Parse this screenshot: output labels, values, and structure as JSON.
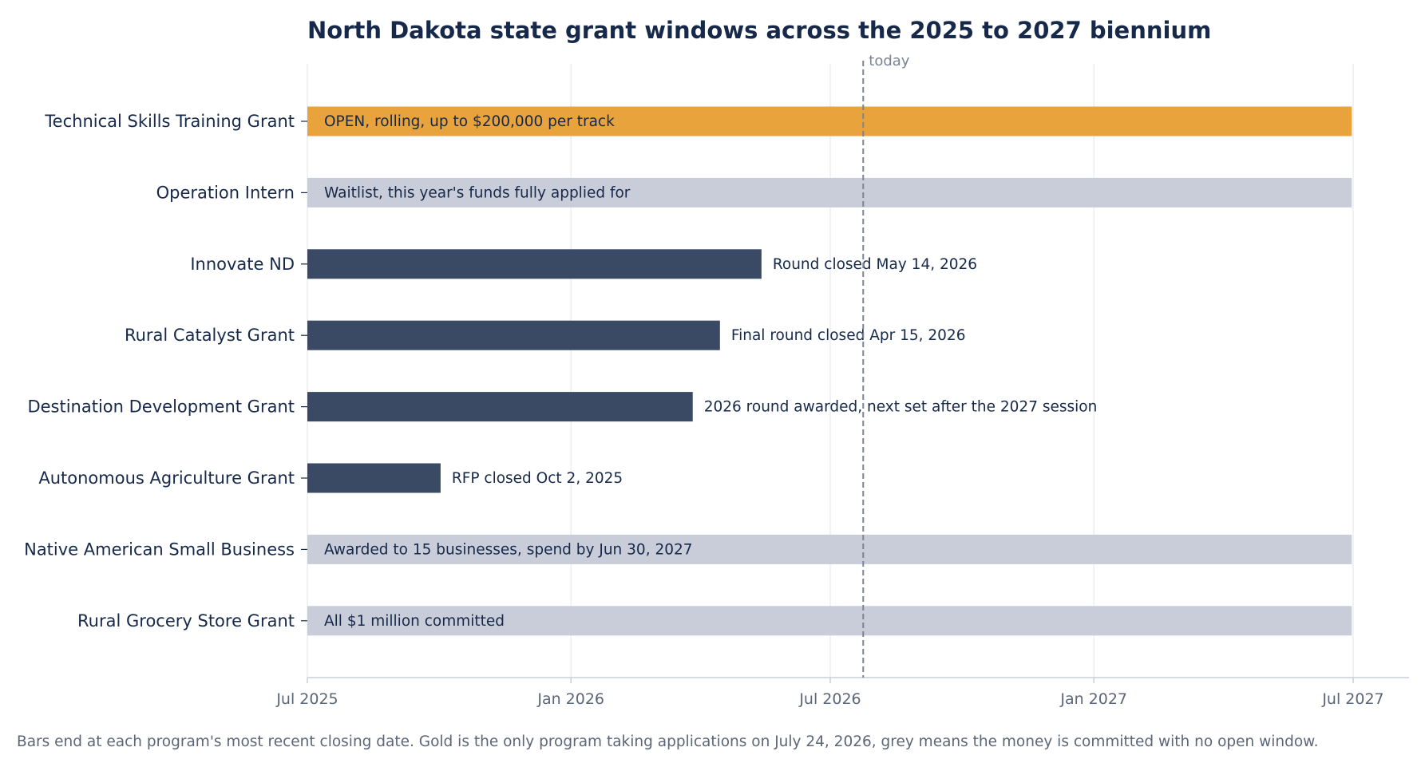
{
  "chart_data": {
    "type": "gantt-bar",
    "title": "North Dakota state grant windows across the 2025 to 2027 biennium",
    "xlim": [
      "2025-07-01",
      "2027-07-01"
    ],
    "x_ticks": [
      {
        "date": "2025-07-01",
        "label": "Jul 2025"
      },
      {
        "date": "2026-01-01",
        "label": "Jan 2026"
      },
      {
        "date": "2026-07-01",
        "label": "Jul 2026"
      },
      {
        "date": "2027-01-01",
        "label": "Jan 2027"
      },
      {
        "date": "2027-07-01",
        "label": "Jul 2027"
      }
    ],
    "today": {
      "date": "2026-07-24",
      "label": "today"
    },
    "grid": "vertical",
    "status_colors": {
      "open": "#e8a33d",
      "closed": "#3b4a64",
      "committed": "#c8cdd9"
    },
    "bars": [
      {
        "program": "Technical Skills Training Grant",
        "start": "2025-07-01",
        "end": "2027-06-30",
        "status": "open",
        "label": "OPEN, rolling, up to $200,000 per track"
      },
      {
        "program": "Operation Intern",
        "start": "2025-07-01",
        "end": "2027-06-30",
        "status": "committed",
        "label": "Waitlist, this year's funds fully applied for"
      },
      {
        "program": "Innovate ND",
        "start": "2025-07-01",
        "end": "2026-05-14",
        "status": "closed",
        "label": "Round closed May 14, 2026"
      },
      {
        "program": "Rural Catalyst Grant",
        "start": "2025-07-01",
        "end": "2026-04-15",
        "status": "closed",
        "label": "Final round closed Apr 15, 2026"
      },
      {
        "program": "Destination Development Grant",
        "start": "2025-07-01",
        "end": "2026-03-27",
        "status": "closed",
        "label": "2026 round awarded, next set after the 2027 session"
      },
      {
        "program": "Autonomous Agriculture Grant",
        "start": "2025-07-01",
        "end": "2025-10-02",
        "status": "closed",
        "label": "RFP closed Oct 2, 2025"
      },
      {
        "program": "Native American Small Business",
        "start": "2025-07-01",
        "end": "2027-06-30",
        "status": "committed",
        "label": "Awarded to 15 businesses, spend by Jun 30, 2027"
      },
      {
        "program": "Rural Grocery Store Grant",
        "start": "2025-07-01",
        "end": "2027-06-30",
        "status": "committed",
        "label": "All $1 million committed"
      }
    ],
    "caption": "Bars end at each program's most recent closing date. Gold is the only program taking applications on July 24, 2026, grey means the money is committed with no open window."
  }
}
